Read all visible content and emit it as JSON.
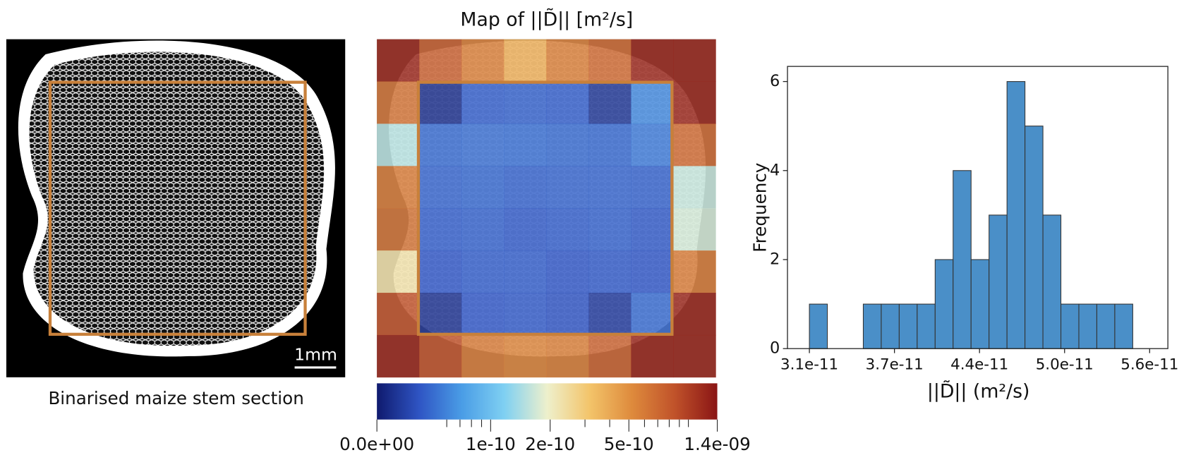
{
  "image_panel": {
    "caption": "Binarised maize stem section",
    "scale_bar_label": "1mm"
  },
  "chart_data": [
    {
      "type": "histogram",
      "xlabel": "||D̃|| (m²/s)",
      "ylabel": "Frequency",
      "bins": [
        3.1e-11,
        3.232e-11,
        3.364e-11,
        3.496e-11,
        3.628e-11,
        3.76e-11,
        3.892e-11,
        4.024e-11,
        4.156e-11,
        4.288e-11,
        4.42e-11,
        4.552e-11,
        4.684e-11,
        4.816e-11,
        4.948e-11,
        5.08e-11,
        5.212e-11,
        5.344e-11,
        5.476e-11
      ],
      "counts": [
        1,
        0,
        0,
        1,
        1,
        1,
        1,
        2,
        4,
        2,
        3,
        6,
        5,
        3,
        1,
        1,
        1,
        1
      ],
      "color": "#4a8fc8",
      "xlim": [
        2.939e-11,
        5.734e-11
      ],
      "xticks": [
        {
          "value": 3.1e-11,
          "label": "3.1e-11"
        },
        {
          "value": 3.725e-11,
          "label": "3.7e-11"
        },
        {
          "value": 4.35e-11,
          "label": "4.4e-11"
        },
        {
          "value": 4.975e-11,
          "label": "5.0e-11"
        },
        {
          "value": 5.6e-11,
          "label": "5.6e-11"
        }
      ],
      "ylim": [
        0,
        6.34
      ],
      "yticks": [
        0,
        2,
        4,
        6
      ]
    },
    {
      "type": "heatmap",
      "title": "Map of ||D̃|| [m²/s]",
      "z": [
        [
          1.24e-09,
          7.7e-10,
          5.8e-10,
          3.9e-10,
          5.8e-10,
          7e-10,
          1.24e-09,
          1.24e-09
        ],
        [
          6.5e-10,
          3.1e-11,
          4.6e-11,
          4.7e-11,
          4.6e-11,
          3.3e-11,
          6.2e-11,
          1.24e-09
        ],
        [
          1.5e-10,
          5e-11,
          5.2e-11,
          5.1e-11,
          5e-11,
          4.9e-11,
          5.6e-11,
          7e-10
        ],
        [
          6e-10,
          4.8e-11,
          4.9e-11,
          4.7e-11,
          4.8e-11,
          4.8e-11,
          4.7e-11,
          1.6e-10
        ],
        [
          6.5e-10,
          4.6e-11,
          4.7e-11,
          4.5e-11,
          4.6e-11,
          4.7e-11,
          4.5e-11,
          1.7e-10
        ],
        [
          2.3e-10,
          4.4e-11,
          4.6e-11,
          4.6e-11,
          4.4e-11,
          4.5e-11,
          4.4e-11,
          6e-10
        ],
        [
          8.5e-10,
          3.2e-11,
          4.4e-11,
          4.5e-11,
          4.3e-11,
          3.4e-11,
          5e-11,
          1.24e-09
        ],
        [
          1.24e-09,
          8.5e-10,
          6e-10,
          5.5e-10,
          5.8e-10,
          7.5e-10,
          1.24e-09,
          1.24e-09
        ]
      ],
      "log_scale": true,
      "clim": [
        2.66e-11,
        1.4e-09
      ],
      "colormap": [
        "#0f1a6e",
        "#2f55c4",
        "#4a9de6",
        "#7fd0f2",
        "#eef0cc",
        "#f3c46a",
        "#de8a3c",
        "#c0522a",
        "#8a1515"
      ],
      "colorbar_ticks": [
        {
          "value": 0,
          "label": "0.0e+00"
        },
        {
          "value": 1e-10,
          "label": "1e-10"
        },
        {
          "value": 2e-10,
          "label": "2e-10"
        },
        {
          "value": 5e-10,
          "label": "5e-10"
        },
        {
          "value": 1.4e-09,
          "label": "1.4e-09"
        }
      ],
      "colorbar_minor_ticks": [
        6e-11,
        7e-11,
        8e-11,
        9e-11,
        3e-10,
        4e-10,
        6e-10,
        7e-10,
        8e-10,
        9e-10,
        1e-09
      ]
    }
  ]
}
